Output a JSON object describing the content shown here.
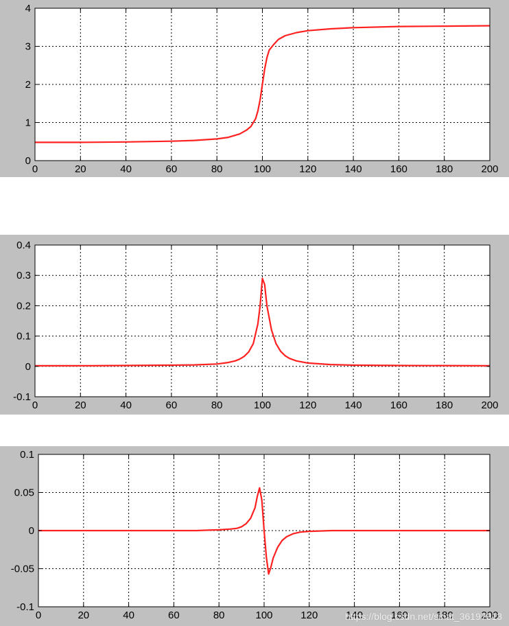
{
  "colors": {
    "figure_bg": "#c0c0c0",
    "axes_bg": "#ffffff",
    "line": "#ff2020",
    "grid": "#000000"
  },
  "watermark": "https://blog.csdn.net/sinat_36197913",
  "chart_data": [
    {
      "type": "line",
      "title": "",
      "xlabel": "",
      "ylabel": "",
      "xlim": [
        0,
        200
      ],
      "ylim": [
        0,
        4
      ],
      "xticks": [
        0,
        20,
        40,
        60,
        80,
        100,
        120,
        140,
        160,
        180,
        200
      ],
      "yticks": [
        0,
        1,
        2,
        3,
        4
      ],
      "ytick_labels": [
        "0",
        "1",
        "2",
        "3",
        "4"
      ],
      "grid": true,
      "legend": "none",
      "series": [
        {
          "x": [
            0,
            20,
            40,
            60,
            70,
            80,
            85,
            90,
            93,
            95,
            97,
            98,
            99,
            100,
            101,
            102,
            103,
            105,
            107,
            110,
            115,
            120,
            130,
            140,
            160,
            180,
            200
          ],
          "y": [
            0.48,
            0.48,
            0.49,
            0.51,
            0.53,
            0.57,
            0.61,
            0.7,
            0.8,
            0.9,
            1.1,
            1.3,
            1.6,
            2.0,
            2.4,
            2.7,
            2.9,
            3.05,
            3.18,
            3.28,
            3.36,
            3.41,
            3.46,
            3.49,
            3.52,
            3.53,
            3.54
          ]
        }
      ]
    },
    {
      "type": "line",
      "title": "",
      "xlabel": "",
      "ylabel": "",
      "xlim": [
        0,
        200
      ],
      "ylim": [
        -0.1,
        0.4
      ],
      "xticks": [
        0,
        20,
        40,
        60,
        80,
        100,
        120,
        140,
        160,
        180,
        200
      ],
      "yticks": [
        -0.1,
        0,
        0.1,
        0.2,
        0.3,
        0.4
      ],
      "ytick_labels": [
        "-0.1",
        "0",
        "0.1",
        "0.2",
        "0.3",
        "0.4"
      ],
      "grid": true,
      "legend": "none",
      "series": [
        {
          "x": [
            0,
            20,
            40,
            60,
            70,
            80,
            85,
            88,
            90,
            92,
            94,
            96,
            98,
            99,
            100,
            101,
            102,
            104,
            106,
            108,
            110,
            112,
            115,
            120,
            130,
            140,
            160,
            200
          ],
          "y": [
            0.002,
            0.002,
            0.003,
            0.004,
            0.005,
            0.008,
            0.013,
            0.018,
            0.024,
            0.033,
            0.048,
            0.075,
            0.14,
            0.2,
            0.29,
            0.27,
            0.2,
            0.12,
            0.075,
            0.05,
            0.035,
            0.026,
            0.018,
            0.011,
            0.006,
            0.004,
            0.003,
            0.002
          ]
        }
      ]
    },
    {
      "type": "line",
      "title": "",
      "xlabel": "",
      "ylabel": "",
      "xlim": [
        0,
        200
      ],
      "ylim": [
        -0.1,
        0.1
      ],
      "xticks": [
        0,
        20,
        40,
        60,
        80,
        100,
        120,
        140,
        160,
        180,
        200
      ],
      "yticks": [
        -0.1,
        -0.05,
        0,
        0.05,
        0.1
      ],
      "ytick_labels": [
        "-0.1",
        "-0.05",
        "0",
        "0.05",
        "0.1"
      ],
      "grid": true,
      "legend": "none",
      "series": [
        {
          "x": [
            0,
            40,
            60,
            70,
            75,
            80,
            85,
            88,
            90,
            92,
            94,
            96,
            97,
            98,
            99,
            100,
            101,
            102,
            103,
            104,
            106,
            108,
            110,
            113,
            116,
            120,
            130,
            200
          ],
          "y": [
            0,
            0,
            0,
            0,
            0.0005,
            0.001,
            0.002,
            0.003,
            0.005,
            0.009,
            0.016,
            0.03,
            0.045,
            0.056,
            0.04,
            0.0,
            -0.035,
            -0.057,
            -0.048,
            -0.036,
            -0.022,
            -0.013,
            -0.008,
            -0.004,
            -0.002,
            -0.001,
            0,
            0
          ]
        }
      ]
    }
  ]
}
